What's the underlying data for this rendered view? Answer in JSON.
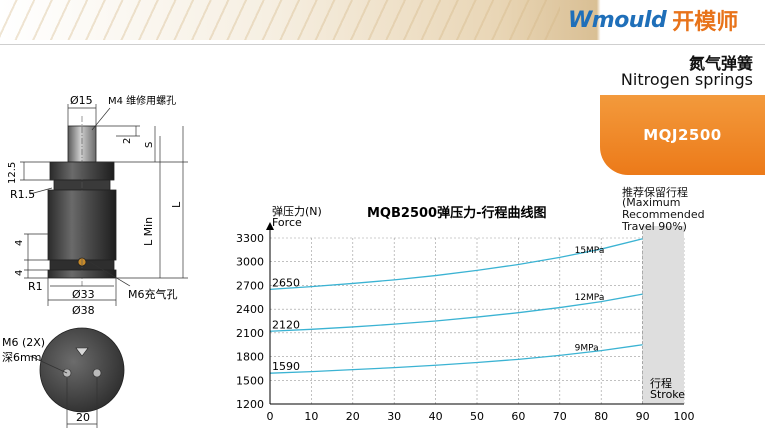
{
  "header": {
    "brand_en": "Wmould",
    "brand_cn": "开模师"
  },
  "product": {
    "name_cn": "氮气弹簧",
    "name_en": "Nitrogen springs",
    "model": "MQJ2500"
  },
  "drawing": {
    "dia_top": "Ø15",
    "thread_note": "M4 维修用螺孔",
    "dim_2": "2",
    "dim_s": "S",
    "dim_12_5": "12.5",
    "dim_r1_5": "R1.5",
    "dim_l_min": "L Min",
    "dim_l": "L",
    "dim_4a": "4",
    "dim_4b": "4",
    "dim_r1": "R1",
    "dia_33": "Ø33",
    "charge_port": "M6充气孔",
    "dia_38": "Ø38",
    "bottom_thread": "M6 (2X)",
    "bottom_depth": "深6mm",
    "dim_20": "20"
  },
  "chart_data": {
    "type": "line",
    "title": "MQB2500弹压力-行程曲线图",
    "ylabel_cn": "弹压力(N)",
    "ylabel_en": "Force",
    "xlabel_cn": "行程",
    "xlabel_en": "Stroke",
    "xlim": [
      0,
      100
    ],
    "ylim": [
      1200,
      3300
    ],
    "x_ticks": [
      0,
      10,
      20,
      30,
      40,
      50,
      60,
      70,
      80,
      90,
      100
    ],
    "y_ticks": [
      1200,
      1500,
      1800,
      2100,
      2400,
      2700,
      3000,
      3300
    ],
    "grid": true,
    "shaded_region": {
      "x_from": 90,
      "x_to": 100,
      "label_cn": "推荐保留行程",
      "label_en": "(Maximum Recommended Travel 90%)"
    },
    "series": [
      {
        "name": "15MPa",
        "start_label": "2650",
        "x": [
          0,
          10,
          20,
          30,
          40,
          50,
          60,
          70,
          80,
          90
        ],
        "values": [
          2650,
          2685,
          2725,
          2770,
          2825,
          2890,
          2965,
          3055,
          3160,
          3290
        ]
      },
      {
        "name": "12MPa",
        "start_label": "2120",
        "x": [
          0,
          10,
          20,
          30,
          40,
          50,
          60,
          70,
          80,
          90
        ],
        "values": [
          2120,
          2145,
          2175,
          2210,
          2250,
          2300,
          2355,
          2420,
          2495,
          2590
        ]
      },
      {
        "name": "9MPa",
        "start_label": "1590",
        "x": [
          0,
          10,
          20,
          30,
          40,
          50,
          60,
          70,
          80,
          90
        ],
        "values": [
          1590,
          1610,
          1635,
          1660,
          1690,
          1725,
          1765,
          1815,
          1875,
          1950
        ]
      }
    ],
    "colors": {
      "curve": "#3bb3d3",
      "grid": "#9a9a9a",
      "shade": "#dedede"
    }
  }
}
